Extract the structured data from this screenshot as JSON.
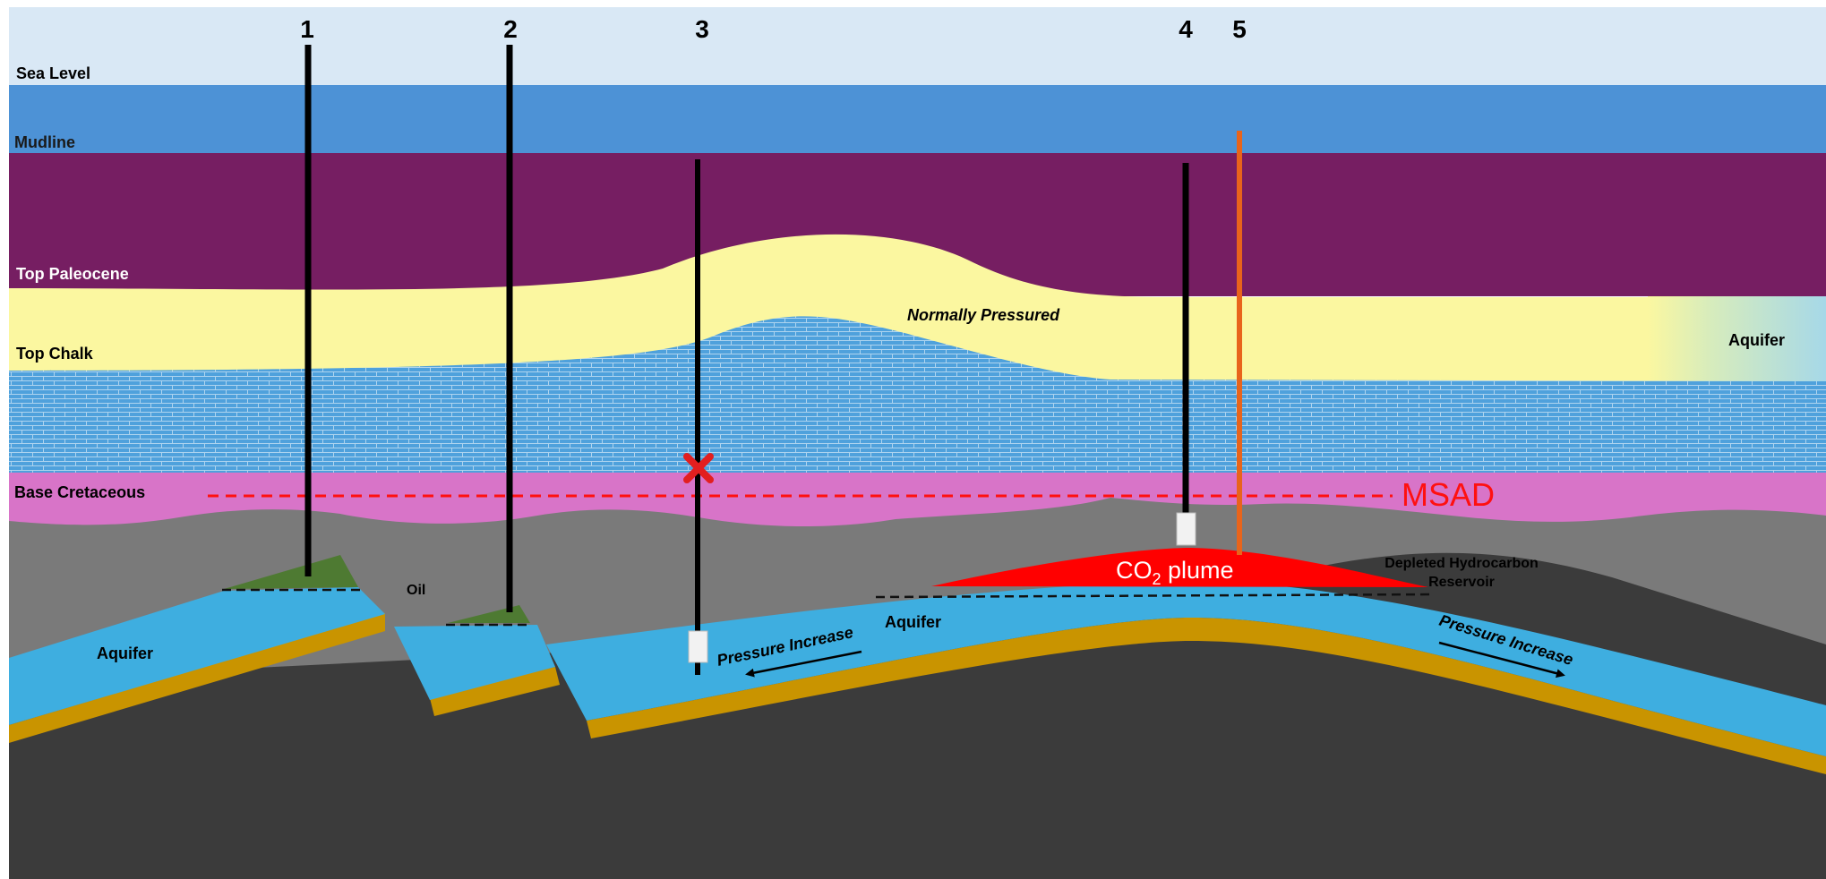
{
  "diagram": {
    "wells": [
      {
        "number": "1"
      },
      {
        "number": "2"
      },
      {
        "number": "3"
      },
      {
        "number": "4"
      },
      {
        "number": "5"
      }
    ],
    "horizons": {
      "sea_level": "Sea Level",
      "mudline": "Mudline",
      "top_paleocene": "Top Paleocene",
      "top_chalk": "Top Chalk",
      "base_cretaceous": "Base Cretaceous"
    },
    "labels": {
      "normally_pressured": "Normally Pressured",
      "aquifer_right_top": "Aquifer",
      "msad": "MSAD",
      "co2_plume_prefix": "CO",
      "co2_plume_subscript": "2",
      "co2_plume_suffix": " plume",
      "depleted_line1": "Depleted Hydrocarbon",
      "depleted_line2": "Reservoir",
      "oil": "Oil",
      "aquifer_left": "Aquifer",
      "aquifer_center": "Aquifer",
      "pressure_increase_left": "Pressure Increase",
      "pressure_increase_right": "Pressure Increase"
    },
    "colors": {
      "sky": "#d9e8f5",
      "sea": "#4d92d6",
      "tertiary": "#761e62",
      "chalk_top": "#fbf7a0",
      "chalk_brick": "#4fa1dc",
      "base_cretaceous": "#d874c8",
      "shale": "#7a7a7a",
      "basement": "#3b3b3b",
      "aquifer": "#3eaee0",
      "sand_base": "#c99400",
      "oil": "#4e7a32",
      "plume": "#ff0000",
      "msad": "#ff1010",
      "well": "#000000",
      "well5": "#e8641b"
    }
  }
}
